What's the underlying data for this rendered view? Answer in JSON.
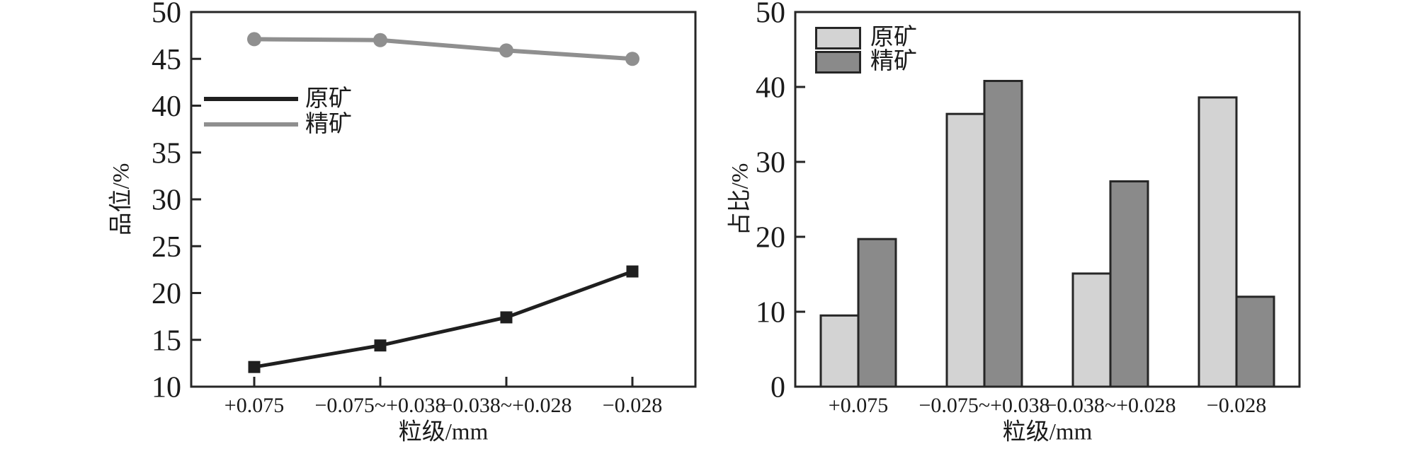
{
  "figure": {
    "background": "#ffffff",
    "axis_color": "#262626",
    "text_color": "#1a1a1a"
  },
  "chart_data": [
    {
      "id": "grade-by-size",
      "type": "line",
      "title": "",
      "xlabel": "粒级/mm",
      "ylabel": "品位/%",
      "categories": [
        "+0.075",
        "−0.075~+0.038",
        "−0.038~+0.028",
        "−0.028"
      ],
      "ylim": [
        10,
        50
      ],
      "y_ticks": [
        10,
        15,
        20,
        25,
        30,
        35,
        40,
        45,
        50
      ],
      "grid": false,
      "legend_position": "inside-upper-left",
      "series": [
        {
          "name": "原矿",
          "marker": "square",
          "color": "#1f1f1f",
          "values": [
            12.1,
            14.4,
            17.4,
            22.3
          ]
        },
        {
          "name": "精矿",
          "marker": "circle",
          "color": "#8f8f8f",
          "values": [
            47.1,
            47.0,
            45.9,
            45.0
          ]
        }
      ]
    },
    {
      "id": "proportion-by-size",
      "type": "bar",
      "title": "",
      "xlabel": "粒级/mm",
      "ylabel": "占比/%",
      "categories": [
        "+0.075",
        "−0.075~+0.038",
        "−0.038~+0.028",
        "−0.028"
      ],
      "ylim": [
        0,
        50
      ],
      "y_ticks": [
        0,
        10,
        20,
        30,
        40,
        50
      ],
      "grid": false,
      "legend_position": "inside-upper-left",
      "bar_border_color": "#262626",
      "series": [
        {
          "name": "原矿",
          "color": "#d3d3d3",
          "values": [
            9.5,
            36.4,
            15.1,
            38.6
          ]
        },
        {
          "name": "精矿",
          "color": "#8a8a8a",
          "values": [
            19.7,
            40.8,
            27.4,
            12.0
          ]
        }
      ]
    }
  ]
}
